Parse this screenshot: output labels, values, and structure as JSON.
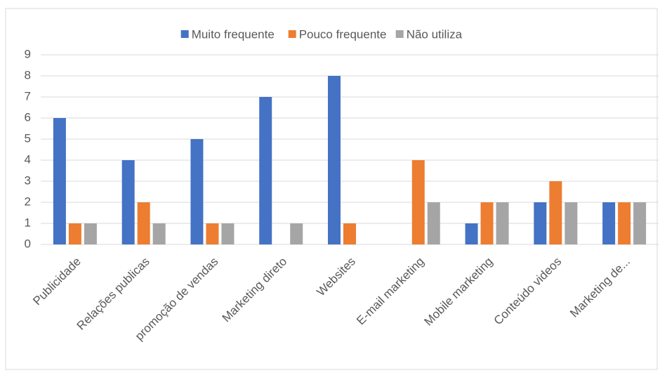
{
  "chart_data": {
    "type": "bar",
    "categories": [
      "Publicidade",
      "Relações publicas",
      "promoção de vendas",
      "Marketing direto",
      "Websites",
      "E-mail marketing",
      "Mobile marketing",
      "Conteúdo videos",
      "Marketing de..."
    ],
    "series": [
      {
        "name": "Muito frequente",
        "color": "#4472c4",
        "values": [
          6,
          4,
          5,
          7,
          8,
          0,
          1,
          2,
          2
        ]
      },
      {
        "name": "Pouco frequente",
        "color": "#ed7d31",
        "values": [
          1,
          2,
          1,
          0,
          1,
          4,
          2,
          3,
          2
        ]
      },
      {
        "name": "Não utiliza",
        "color": "#a5a5a5",
        "values": [
          1,
          1,
          1,
          1,
          0,
          2,
          2,
          2,
          2
        ]
      }
    ],
    "ylim": [
      0,
      9
    ],
    "yticks": [
      0,
      1,
      2,
      3,
      4,
      5,
      6,
      7,
      8,
      9
    ],
    "grid": true,
    "legend": "top"
  }
}
